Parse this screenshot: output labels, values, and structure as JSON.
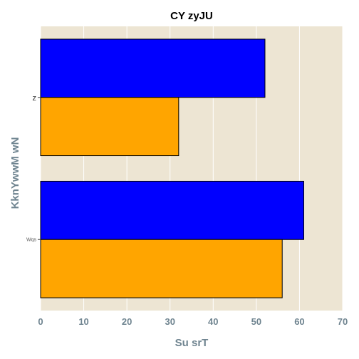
{
  "chart_data": {
    "type": "bar",
    "orientation": "horizontal",
    "title": "CY zyJU",
    "xlabel": "Su srT",
    "ylabel": "KknYwwM wN",
    "categories": [
      "z",
      "Wqs"
    ],
    "series": [
      {
        "values": [
          52,
          61
        ],
        "color": "#0000ff"
      },
      {
        "values": [
          32,
          56
        ],
        "color": "#ffa500"
      }
    ],
    "xlim": [
      0,
      70
    ],
    "xticks": [
      "0",
      "10",
      "20",
      "30",
      "40",
      "50",
      "60",
      "70"
    ],
    "grid": true,
    "legend": "none",
    "plot_background": "#ede5d3"
  }
}
